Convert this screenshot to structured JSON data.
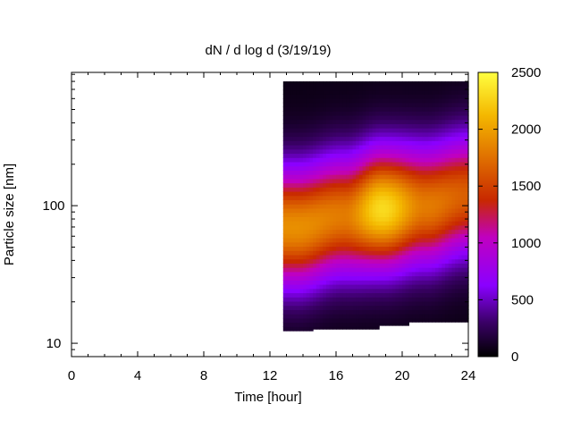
{
  "chart_data": {
    "type": "heatmap",
    "title": "dN / d log d (3/19/19)",
    "xlabel": "Time [hour]",
    "ylabel": "Particle size [nm]",
    "x_ticks": [
      0,
      4,
      8,
      12,
      16,
      20,
      24
    ],
    "x_tick_labels": [
      "0",
      "4",
      "8",
      "12",
      "16",
      "20",
      "24"
    ],
    "xlim": [
      0,
      24
    ],
    "y_scale": "log",
    "ylim": [
      8,
      930
    ],
    "y_ticks": [
      10,
      100
    ],
    "y_tick_labels": [
      "10",
      "100"
    ],
    "colorbar": {
      "range": [
        0,
        2500
      ],
      "ticks": [
        0,
        500,
        1000,
        1500,
        2000,
        2500
      ],
      "tick_labels": [
        "0",
        "500",
        "1000",
        "1500",
        "2000",
        "2500"
      ],
      "palette": [
        "#000000",
        "#3a0066",
        "#8a00ff",
        "#c000c0",
        "#c82800",
        "#e07000",
        "#f4b800",
        "#ffff40"
      ]
    },
    "data_time_range": [
      12.8,
      24
    ],
    "data_size_top": 800,
    "lower_size_limit": [
      {
        "t_start": 12.8,
        "t_end": 14.5,
        "d": 12.0
      },
      {
        "t_start": 14.5,
        "t_end": 18.5,
        "d": 12.7
      },
      {
        "t_start": 18.5,
        "t_end": 20.4,
        "d": 13.5
      },
      {
        "t_start": 20.4,
        "t_end": 24,
        "d": 14.3
      }
    ],
    "modes": [
      {
        "time": 13.6,
        "diameter": 70,
        "peak": 1850
      },
      {
        "time": 16.5,
        "diameter": 85,
        "peak": 1750
      },
      {
        "time": 18.8,
        "diameter": 95,
        "peak": 2250
      },
      {
        "time": 21.4,
        "diameter": 100,
        "peak": 1750
      },
      {
        "time": 24,
        "diameter": 120,
        "peak": 1600
      }
    ]
  }
}
